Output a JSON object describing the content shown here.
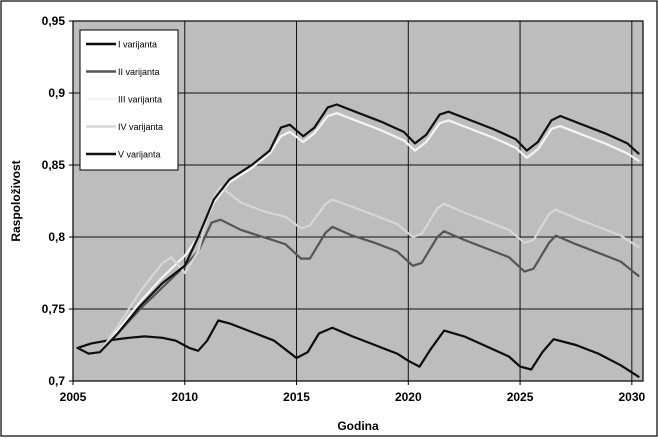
{
  "chart_data": {
    "type": "line",
    "xlabel": "Godina",
    "ylabel": "Raspoloživost",
    "xlim": [
      2005,
      2030.5
    ],
    "ylim": [
      0.7,
      0.95
    ],
    "x_ticks": [
      "2005",
      "2010",
      "2015",
      "2020",
      "2025",
      "2030"
    ],
    "y_ticks": [
      "0,7",
      "0,75",
      "0,8",
      "0,85",
      "0,9",
      "0,95"
    ],
    "grid": true,
    "legend_position": "top-left",
    "colors": {
      "outer_background": "#ffffff",
      "plot_background": "#bdbdbd",
      "grid": "#111111",
      "legend_background": "#ffffff"
    },
    "series": [
      {
        "name": "I varijanta",
        "color": "#0d0d0d",
        "x": [
          2005.2,
          2005.8,
          2006.5,
          2007.5,
          2008.2,
          2009,
          2009.6,
          2010.2,
          2010.6,
          2011,
          2011.5,
          2012,
          2013,
          2014,
          2015,
          2015.5,
          2016,
          2016.6,
          2017.5,
          2018.5,
          2019.5,
          2020,
          2020.5,
          2021,
          2021.6,
          2022.5,
          2023.5,
          2024.5,
          2025,
          2025.5,
          2026,
          2026.5,
          2027.5,
          2028.5,
          2029.5,
          2030.3
        ],
        "values": [
          0.723,
          0.726,
          0.728,
          0.73,
          0.731,
          0.73,
          0.728,
          0.723,
          0.721,
          0.728,
          0.742,
          0.74,
          0.734,
          0.728,
          0.716,
          0.72,
          0.733,
          0.737,
          0.731,
          0.725,
          0.719,
          0.714,
          0.71,
          0.722,
          0.735,
          0.731,
          0.724,
          0.717,
          0.71,
          0.708,
          0.72,
          0.729,
          0.725,
          0.719,
          0.711,
          0.703
        ]
      },
      {
        "name": "II varijanta",
        "color": "#555555",
        "x": [
          2005.2,
          2005.7,
          2006.2,
          2007,
          2008,
          2009,
          2010,
          2010.6,
          2011.2,
          2011.6,
          2012.5,
          2013.5,
          2014.5,
          2015.2,
          2015.6,
          2016.3,
          2016.6,
          2017.5,
          2018.5,
          2019.5,
          2020.2,
          2020.6,
          2021.3,
          2021.6,
          2022.5,
          2023.5,
          2024.5,
          2025.2,
          2025.6,
          2026.3,
          2026.6,
          2027.5,
          2028.5,
          2029.5,
          2030.3
        ],
        "values": [
          0.723,
          0.719,
          0.72,
          0.733,
          0.75,
          0.765,
          0.78,
          0.79,
          0.81,
          0.812,
          0.805,
          0.8,
          0.795,
          0.785,
          0.785,
          0.803,
          0.807,
          0.801,
          0.796,
          0.79,
          0.78,
          0.782,
          0.8,
          0.804,
          0.798,
          0.792,
          0.786,
          0.776,
          0.778,
          0.796,
          0.801,
          0.795,
          0.789,
          0.783,
          0.773
        ]
      },
      {
        "name": "III varijanta",
        "color": "#f4f4f4",
        "x": [
          2005.2,
          2005.7,
          2006.2,
          2007,
          2008,
          2009,
          2010,
          2010.6,
          2011.3,
          2012,
          2013,
          2013.8,
          2014.3,
          2014.7,
          2015.3,
          2015.8,
          2016.4,
          2016.8,
          2017.8,
          2018.8,
          2019.8,
          2020.3,
          2020.8,
          2021.4,
          2021.8,
          2022.8,
          2023.8,
          2024.8,
          2025.3,
          2025.8,
          2026.4,
          2026.8,
          2027.8,
          2028.8,
          2029.8,
          2030.3
        ],
        "values": [
          0.723,
          0.719,
          0.72,
          0.735,
          0.755,
          0.772,
          0.787,
          0.8,
          0.824,
          0.838,
          0.848,
          0.858,
          0.87,
          0.873,
          0.866,
          0.872,
          0.884,
          0.886,
          0.88,
          0.874,
          0.867,
          0.86,
          0.866,
          0.879,
          0.881,
          0.875,
          0.869,
          0.862,
          0.855,
          0.861,
          0.875,
          0.877,
          0.871,
          0.865,
          0.858,
          0.853
        ]
      },
      {
        "name": "IV varijanta",
        "color": "#d6d6d6",
        "x": [
          2005.2,
          2005.7,
          2006.2,
          2007,
          2008,
          2009,
          2009.4,
          2010,
          2010.6,
          2011.2,
          2011.6,
          2012.5,
          2013.5,
          2014.5,
          2015.2,
          2015.6,
          2016.3,
          2016.6,
          2017.5,
          2018.5,
          2019.5,
          2020.2,
          2020.6,
          2021.3,
          2021.6,
          2022.5,
          2023.5,
          2024.5,
          2025.2,
          2025.6,
          2026.3,
          2026.6,
          2027.5,
          2028.5,
          2029.5,
          2030.3
        ],
        "values": [
          0.723,
          0.719,
          0.72,
          0.738,
          0.762,
          0.782,
          0.786,
          0.775,
          0.79,
          0.825,
          0.835,
          0.824,
          0.818,
          0.814,
          0.806,
          0.808,
          0.823,
          0.826,
          0.821,
          0.815,
          0.809,
          0.8,
          0.802,
          0.82,
          0.823,
          0.817,
          0.811,
          0.805,
          0.796,
          0.798,
          0.816,
          0.819,
          0.813,
          0.807,
          0.801,
          0.793
        ]
      },
      {
        "name": "V varijanta",
        "color": "#111111",
        "x": [
          2005.2,
          2005.7,
          2006.2,
          2007,
          2008,
          2009,
          2010,
          2010.6,
          2011.3,
          2012,
          2013,
          2013.8,
          2014.3,
          2014.7,
          2015.3,
          2015.8,
          2016.4,
          2016.8,
          2017.8,
          2018.8,
          2019.8,
          2020.3,
          2020.8,
          2021.4,
          2021.8,
          2022.8,
          2023.8,
          2024.8,
          2025.3,
          2025.8,
          2026.4,
          2026.8,
          2027.8,
          2028.8,
          2029.8,
          2030.3
        ],
        "values": [
          0.723,
          0.719,
          0.72,
          0.733,
          0.752,
          0.768,
          0.78,
          0.8,
          0.826,
          0.84,
          0.85,
          0.86,
          0.876,
          0.878,
          0.87,
          0.876,
          0.89,
          0.892,
          0.886,
          0.88,
          0.873,
          0.865,
          0.871,
          0.885,
          0.887,
          0.881,
          0.875,
          0.868,
          0.86,
          0.866,
          0.881,
          0.884,
          0.878,
          0.872,
          0.865,
          0.858
        ]
      }
    ]
  }
}
